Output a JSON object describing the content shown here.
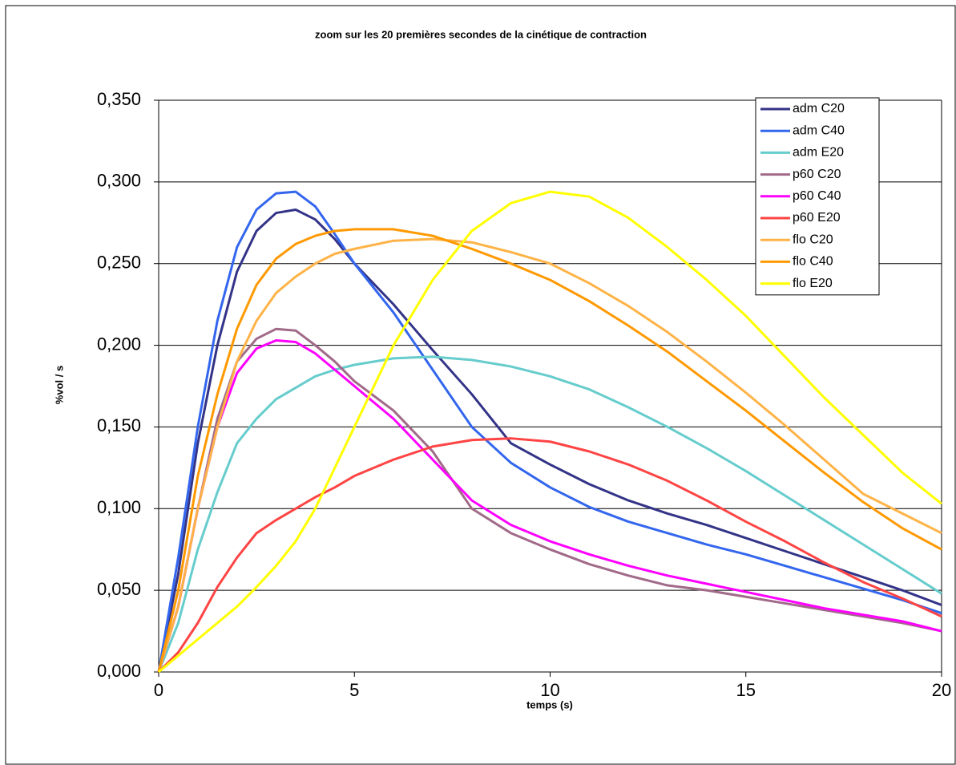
{
  "chart_data": {
    "type": "line",
    "title": "zoom sur les 20 premières secondes de la cinétique de contraction",
    "xlabel": "temps (s)",
    "ylabel": "%vol / s",
    "x": [
      0,
      0.5,
      1,
      1.5,
      2,
      2.5,
      3,
      3.5,
      4,
      4.5,
      5,
      6,
      7,
      8,
      9,
      10,
      11,
      12,
      13,
      14,
      15,
      16,
      17,
      18,
      19,
      20
    ],
    "xlim": [
      0,
      20
    ],
    "xticks": [
      0,
      5,
      10,
      15,
      20
    ],
    "ylim": [
      0,
      0.35
    ],
    "yticks": [
      {
        "value": 0,
        "label": "0,000"
      },
      {
        "value": 0.05,
        "label": "0,050"
      },
      {
        "value": 0.1,
        "label": "0,100"
      },
      {
        "value": 0.15,
        "label": "0,150"
      },
      {
        "value": 0.2,
        "label": "0,200"
      },
      {
        "value": 0.25,
        "label": "0,250"
      },
      {
        "value": 0.3,
        "label": "0,300"
      },
      {
        "value": 0.35,
        "label": "0,350"
      }
    ],
    "grid": true,
    "legend": "upper right",
    "series": [
      {
        "name": "adm C20",
        "color": "#333388",
        "values": [
          0,
          0.06,
          0.14,
          0.2,
          0.245,
          0.27,
          0.281,
          0.283,
          0.277,
          0.265,
          0.25,
          0.225,
          0.197,
          0.17,
          0.14,
          0.127,
          0.115,
          0.105,
          0.097,
          0.09,
          0.082,
          0.074,
          0.066,
          0.058,
          0.05,
          0.041
        ]
      },
      {
        "name": "adm C40",
        "color": "#3366ee",
        "values": [
          0,
          0.07,
          0.15,
          0.215,
          0.26,
          0.283,
          0.293,
          0.294,
          0.285,
          0.268,
          0.25,
          0.22,
          0.185,
          0.15,
          0.128,
          0.113,
          0.101,
          0.092,
          0.085,
          0.078,
          0.072,
          0.065,
          0.058,
          0.051,
          0.044,
          0.036
        ]
      },
      {
        "name": "adm E20",
        "color": "#66cccc",
        "values": [
          0,
          0.03,
          0.075,
          0.11,
          0.14,
          0.155,
          0.167,
          0.174,
          0.181,
          0.185,
          0.188,
          0.192,
          0.193,
          0.191,
          0.187,
          0.181,
          0.173,
          0.162,
          0.15,
          0.137,
          0.123,
          0.108,
          0.093,
          0.078,
          0.063,
          0.048
        ]
      },
      {
        "name": "p60 C20",
        "color": "#a06a88",
        "values": [
          0,
          0.04,
          0.1,
          0.155,
          0.19,
          0.204,
          0.21,
          0.209,
          0.2,
          0.19,
          0.178,
          0.16,
          0.135,
          0.1,
          0.085,
          0.075,
          0.066,
          0.059,
          0.053,
          0.05,
          0.046,
          0.042,
          0.038,
          0.034,
          0.03,
          0.025
        ]
      },
      {
        "name": "p60 C40",
        "color": "#ff00ff",
        "values": [
          0,
          0.04,
          0.1,
          0.15,
          0.183,
          0.198,
          0.203,
          0.202,
          0.195,
          0.185,
          0.175,
          0.155,
          0.13,
          0.105,
          0.09,
          0.08,
          0.072,
          0.065,
          0.059,
          0.054,
          0.049,
          0.044,
          0.039,
          0.035,
          0.031,
          0.025
        ]
      },
      {
        "name": "p60 E20",
        "color": "#ff4444",
        "values": [
          0,
          0.012,
          0.03,
          0.052,
          0.07,
          0.085,
          0.093,
          0.1,
          0.107,
          0.113,
          0.12,
          0.13,
          0.138,
          0.142,
          0.143,
          0.141,
          0.135,
          0.127,
          0.117,
          0.105,
          0.092,
          0.08,
          0.067,
          0.055,
          0.045,
          0.034
        ]
      },
      {
        "name": "flo C20",
        "color": "#ffb347",
        "values": [
          0,
          0.04,
          0.1,
          0.15,
          0.19,
          0.215,
          0.232,
          0.242,
          0.25,
          0.256,
          0.259,
          0.264,
          0.265,
          0.263,
          0.257,
          0.25,
          0.238,
          0.224,
          0.208,
          0.19,
          0.171,
          0.151,
          0.13,
          0.109,
          0.097,
          0.085
        ]
      },
      {
        "name": "flo C40",
        "color": "#ff9900",
        "values": [
          0,
          0.05,
          0.12,
          0.17,
          0.21,
          0.237,
          0.253,
          0.262,
          0.267,
          0.27,
          0.271,
          0.271,
          0.267,
          0.259,
          0.25,
          0.24,
          0.227,
          0.212,
          0.196,
          0.178,
          0.16,
          0.141,
          0.122,
          0.104,
          0.088,
          0.075
        ]
      },
      {
        "name": "flo E20",
        "color": "#ffff00",
        "values": [
          0,
          0.01,
          0.02,
          0.03,
          0.04,
          0.052,
          0.065,
          0.08,
          0.1,
          0.125,
          0.15,
          0.2,
          0.24,
          0.27,
          0.287,
          0.294,
          0.291,
          0.278,
          0.26,
          0.24,
          0.218,
          0.193,
          0.168,
          0.145,
          0.122,
          0.103
        ]
      }
    ]
  }
}
